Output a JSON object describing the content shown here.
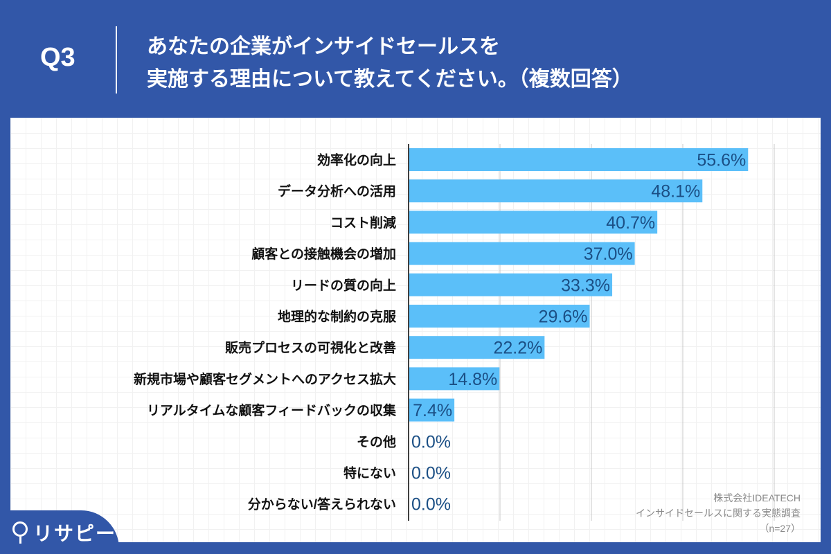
{
  "header": {
    "question": "Q3",
    "title_line1": "あなたの企業がインサイドセールスを",
    "title_line2": "実施する理由について教えてください。（複数回答）"
  },
  "source": {
    "company": "株式会社IDEATECH",
    "survey": "インサイドセールスに関する実態調査",
    "n": "（n=27）"
  },
  "logo": {
    "text": "リサピー"
  },
  "colors": {
    "frame": "#3257a8",
    "bar": "#5bbff9",
    "value_label": "#1b4f85"
  },
  "chart_data": {
    "type": "bar",
    "orientation": "horizontal",
    "xlim": [
      0,
      60
    ],
    "grid": true,
    "gridlines": [
      0,
      15,
      30,
      45,
      60
    ],
    "categories": [
      "効率化の向上",
      "データ分析への活用",
      "コスト削減",
      "顧客との接触機会の増加",
      "リードの質の向上",
      "地理的な制約の克服",
      "販売プロセスの可視化と改善",
      "新規市場や顧客セグメントへのアクセス拡大",
      "リアルタイムな顧客フィードバックの収集",
      "その他",
      "特にない",
      "分からない/答えられない"
    ],
    "values": [
      55.6,
      48.1,
      40.7,
      37.0,
      33.3,
      29.6,
      22.2,
      14.8,
      7.4,
      0.0,
      0.0,
      0.0
    ],
    "value_labels": [
      "55.6%",
      "48.1%",
      "40.7%",
      "37.0%",
      "33.3%",
      "29.6%",
      "22.2%",
      "14.8%",
      "7.4%",
      "0.0%",
      "0.0%",
      "0.0%"
    ],
    "unit": "%"
  }
}
